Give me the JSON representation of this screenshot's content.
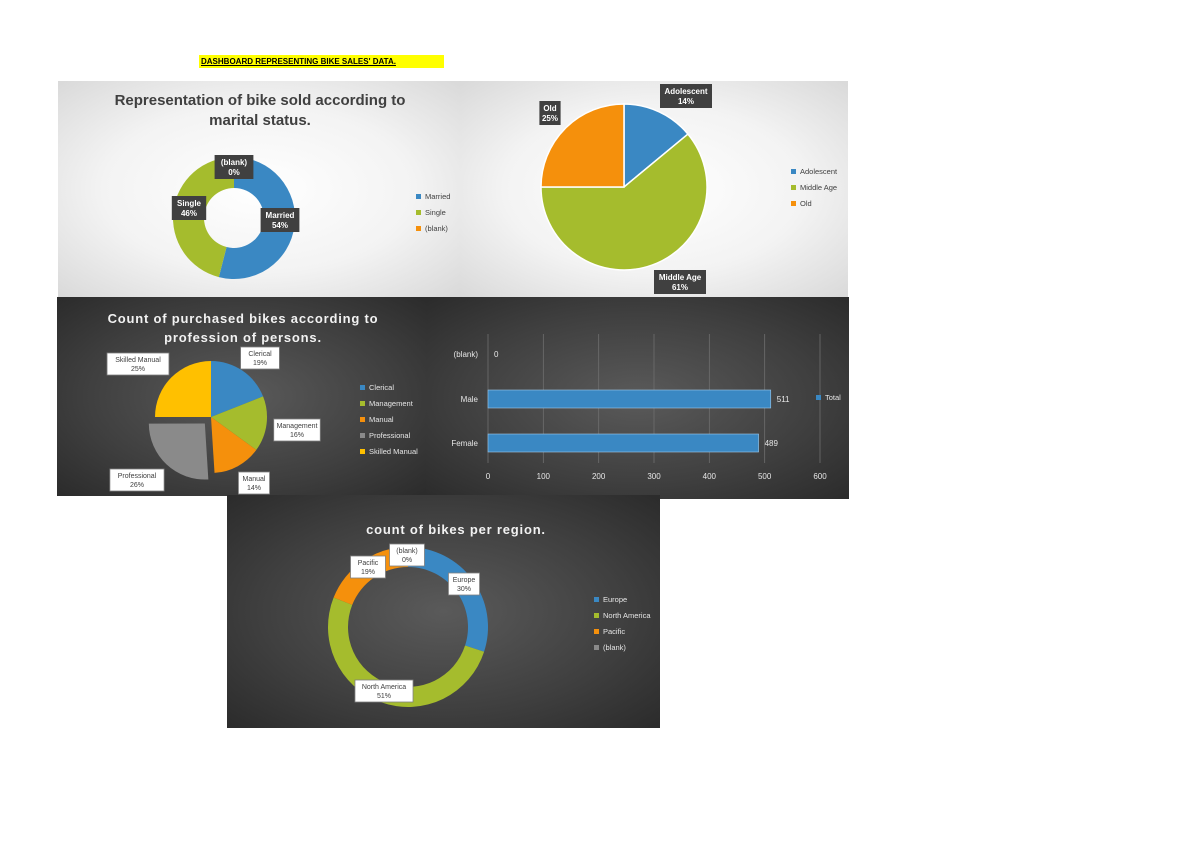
{
  "header": {
    "title": "DASHBOARD REPRESENTING BIKE SALES' DATA."
  },
  "colors": {
    "blue": "#3a88c3",
    "green": "#a5bc2d",
    "orange": "#f5900c",
    "gray": "#8a8a8a",
    "yellow": "#ffc000",
    "highlight": "#ffff00"
  },
  "chart_data": [
    {
      "id": "marital",
      "type": "pie",
      "title_lines": [
        "Representation of bike sold according to",
        "marital status."
      ],
      "categories": [
        "Married",
        "Single",
        "(blank)"
      ],
      "values": [
        54,
        46,
        0
      ],
      "labels": [
        "Married\n54%",
        "Single\n46%",
        "(blank)\n0%"
      ],
      "legend": [
        "Married",
        "Single",
        "(blank)"
      ],
      "legend_position": "right",
      "donut": true
    },
    {
      "id": "age",
      "type": "pie",
      "title_lines": [],
      "categories": [
        "Adolescent",
        "Middle Age",
        "Old"
      ],
      "values": [
        14,
        61,
        25
      ],
      "labels": [
        "Adolescent\n14%",
        "Middle Age\n61%",
        "Old\n25%"
      ],
      "legend": [
        "Adolescent",
        "Middle Age",
        "Old"
      ],
      "legend_position": "right",
      "donut": false
    },
    {
      "id": "profession",
      "type": "pie",
      "title_lines": [
        "Count of purchased bikes according to",
        "profession of persons."
      ],
      "categories": [
        "Clerical",
        "Management",
        "Manual",
        "Professional",
        "Skilled Manual"
      ],
      "values": [
        19,
        16,
        14,
        26,
        25
      ],
      "labels": [
        "Clerical\n19%",
        "Management\n16%",
        "Manual\n14%",
        "Professional\n26%",
        "Skilled Manual\n25%"
      ],
      "legend": [
        "Clerical",
        "Management",
        "Manual",
        "Professional",
        "Skilled Manual"
      ],
      "legend_position": "right",
      "donut": false
    },
    {
      "id": "gender",
      "type": "bar",
      "orientation": "horizontal",
      "categories": [
        "(blank)",
        "Male",
        "Female"
      ],
      "series": [
        {
          "name": "Total",
          "values": [
            0,
            511,
            489
          ]
        }
      ],
      "data_labels": [
        "0",
        "511",
        "489"
      ],
      "xlim": [
        0,
        600
      ],
      "xticks": [
        "0",
        "100",
        "200",
        "300",
        "400",
        "500",
        "600"
      ],
      "grid": true,
      "legend_position": "right"
    },
    {
      "id": "region",
      "type": "pie",
      "title_lines": [
        "count of bikes per region."
      ],
      "categories": [
        "Europe",
        "North America",
        "Pacific",
        "(blank)"
      ],
      "values": [
        30,
        51,
        19,
        0
      ],
      "labels": [
        "Europe\n30%",
        "North America\n51%",
        "Pacific\n19%",
        "(blank)\n0%"
      ],
      "legend": [
        "Europe",
        "North America",
        "Pacific",
        "(blank)"
      ],
      "legend_position": "right",
      "donut": true
    }
  ]
}
